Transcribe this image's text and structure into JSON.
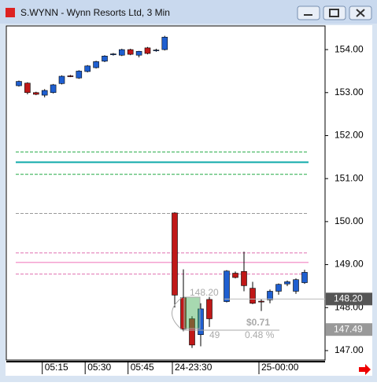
{
  "window_title": "S.WYNN - Wynn Resorts Ltd, 3 Min",
  "chart_data": {
    "type": "candlestick",
    "ylim": [
      146.78,
      154.55
    ],
    "yticks": [
      {
        "value": 147,
        "label": "147.00"
      },
      {
        "value": 148,
        "label": "148.00"
      },
      {
        "value": 149,
        "label": "149.00"
      },
      {
        "value": 150,
        "label": "150.00"
      },
      {
        "value": 151,
        "label": "151.00"
      },
      {
        "value": 152,
        "label": "152.00"
      },
      {
        "value": 153,
        "label": "153.00"
      },
      {
        "value": 154,
        "label": "154.00"
      }
    ],
    "categories": [
      null,
      null,
      null,
      "05:15",
      null,
      null,
      null,
      null,
      "05:30",
      null,
      null,
      null,
      null,
      "05:45",
      null,
      null,
      null,
      null,
      "24-23:30",
      null,
      null,
      null,
      null,
      null,
      null,
      null,
      null,
      null,
      "25-00:00",
      null,
      null,
      null,
      null,
      null
    ],
    "up_color": "#1f5fd0",
    "down_color": "#c01818",
    "open": [
      153.16,
      153.22,
      153.0,
      152.94,
      153.0,
      153.21,
      153.39,
      153.34,
      153.49,
      153.58,
      153.73,
      153.88,
      153.87,
      154.0,
      153.87,
      154.04,
      153.98,
      154.0,
      150.2,
      148.23,
      147.74,
      147.37,
      148.19,
      null,
      148.14,
      148.8,
      148.84,
      148.45,
      148.15,
      148.18,
      148.38,
      148.55,
      148.38,
      148.58
    ],
    "high": [
      153.28,
      153.24,
      153.02,
      153.08,
      153.2,
      153.4,
      153.41,
      153.52,
      153.64,
      153.74,
      153.87,
      153.92,
      154.02,
      154.02,
      153.97,
      154.06,
      154.02,
      154.32,
      150.22,
      148.89,
      147.8,
      148.1,
      148.25,
      null,
      148.87,
      148.84,
      149.3,
      148.6,
      148.2,
      148.42,
      148.56,
      148.63,
      148.68,
      148.88
    ],
    "low": [
      153.14,
      152.96,
      152.94,
      152.89,
      152.98,
      153.19,
      153.36,
      153.32,
      153.47,
      153.56,
      153.71,
      153.86,
      153.85,
      153.87,
      153.82,
      153.89,
      153.95,
      153.98,
      148.0,
      147.45,
      147.06,
      147.1,
      147.55,
      null,
      148.12,
      148.68,
      148.38,
      148.08,
      147.92,
      148.1,
      148.3,
      148.5,
      148.32,
      148.55
    ],
    "close": [
      153.26,
      153.0,
      152.96,
      153.05,
      153.18,
      153.38,
      153.37,
      153.5,
      153.62,
      153.72,
      153.85,
      153.9,
      154.0,
      153.89,
      153.96,
      153.91,
      153.99,
      154.29,
      148.29,
      147.5,
      147.13,
      147.97,
      147.74,
      null,
      148.85,
      148.7,
      148.51,
      148.1,
      148.13,
      148.38,
      148.54,
      148.6,
      148.65,
      148.82
    ],
    "levels": [
      {
        "value": 151.62,
        "color": "#22aa44",
        "style": "dashed"
      },
      {
        "value": 151.38,
        "color": "#11aaaa",
        "style": "solid"
      },
      {
        "value": 151.1,
        "color": "#22aa44",
        "style": "dashed"
      },
      {
        "value": 150.19,
        "color": "#999999",
        "style": "dashed"
      },
      {
        "value": 149.27,
        "color": "#e070b0",
        "style": "dashed"
      },
      {
        "value": 149.05,
        "color": "#f080c0",
        "style": "solid"
      },
      {
        "value": 148.78,
        "color": "#e070b0",
        "style": "dashed"
      }
    ],
    "price_tags": [
      {
        "value": 148.2,
        "label": "148.20",
        "color": "#555555"
      },
      {
        "value": 147.49,
        "label": "147.49",
        "color": "#999999"
      }
    ],
    "measure": {
      "price": "148.20",
      "change": "$0.71",
      "percent": "0.48 %",
      "bars": "49"
    }
  }
}
